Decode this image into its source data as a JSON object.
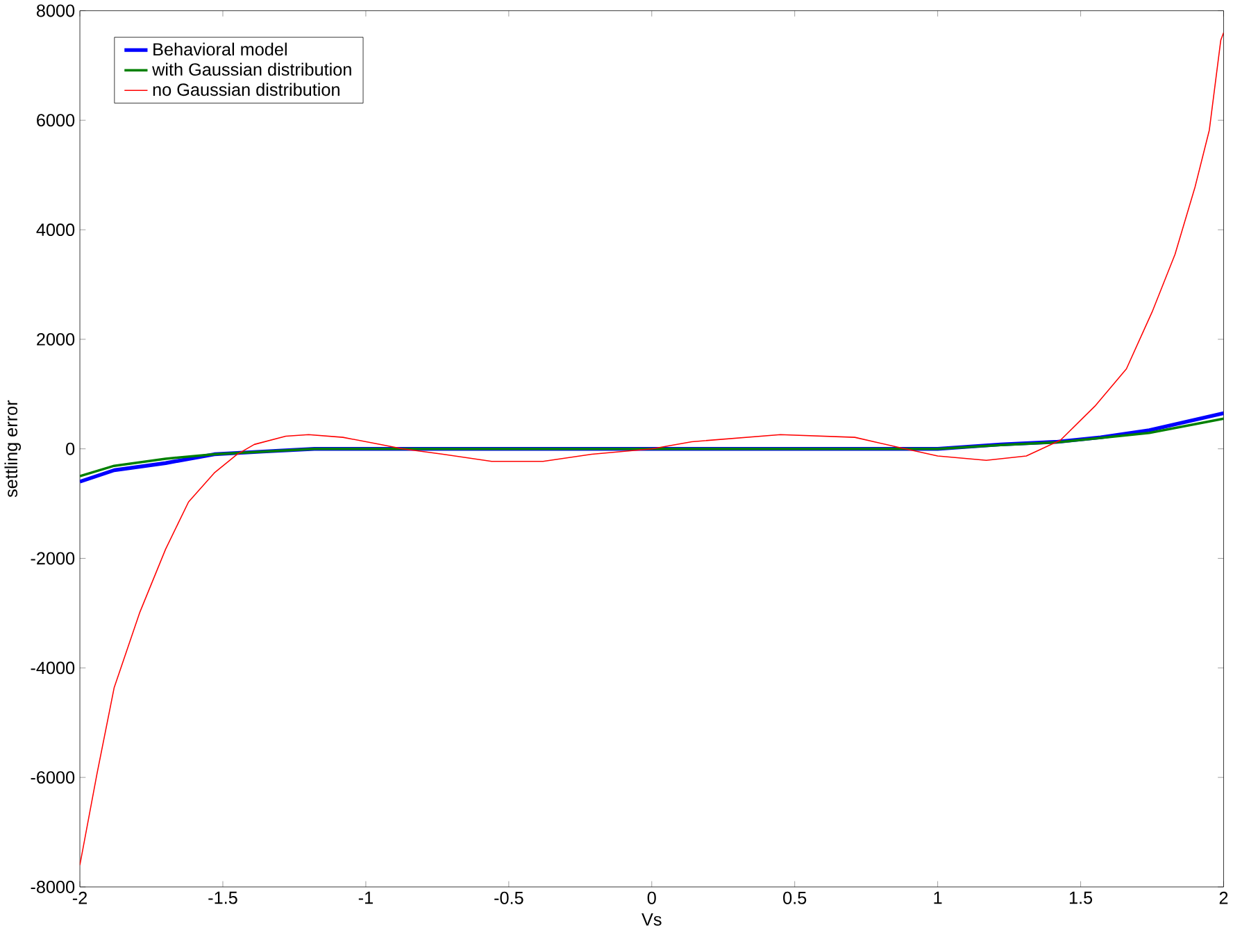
{
  "chart_data": {
    "type": "line",
    "xlabel": "Vs",
    "ylabel": "settling error",
    "xlim": [
      -2,
      2
    ],
    "ylim": [
      -8000,
      8000
    ],
    "xticks": [
      -2,
      -1.5,
      -1,
      -0.5,
      0,
      0.5,
      1,
      1.5,
      2
    ],
    "yticks": [
      -8000,
      -6000,
      -4000,
      -2000,
      0,
      2000,
      4000,
      6000,
      8000
    ],
    "grid": false,
    "legend": "top left",
    "marker": "none",
    "line_style": "solid",
    "series": [
      {
        "name": "Behavioral model",
        "color": "#0000ff",
        "x": [
          -2,
          -1.88,
          -1.7,
          -1.53,
          -1.36,
          -1.18,
          -1,
          0,
          1,
          1.22,
          1.42,
          1.57,
          1.74,
          2
        ],
        "values": [
          -600,
          -390,
          -260,
          -100,
          -50,
          0,
          0,
          0,
          0,
          80,
          130,
          210,
          340,
          650
        ]
      },
      {
        "name": "with Gaussian distribution",
        "color": "#008000",
        "x": [
          -2,
          -1.88,
          -1.7,
          -1.53,
          -1.36,
          -1.18,
          -1,
          0,
          1,
          1.22,
          1.42,
          1.57,
          1.74,
          2
        ],
        "values": [
          -500,
          -310,
          -180,
          -100,
          -50,
          0,
          0,
          0,
          0,
          70,
          120,
          200,
          290,
          550
        ]
      },
      {
        "name": "no Gaussian distribution",
        "color": "#ff0000",
        "x": [
          -2,
          -1.94,
          -1.88,
          -1.79,
          -1.7,
          -1.62,
          -1.53,
          -1.45,
          -1.39,
          -1.28,
          -1.2,
          -1.08,
          -0.97,
          -0.87,
          -0.73,
          -0.56,
          -0.38,
          -0.21,
          0,
          0.14,
          0.45,
          0.71,
          0.86,
          1.0,
          1.17,
          1.31,
          1.43,
          1.55,
          1.66,
          1.75,
          1.83,
          1.9,
          1.95,
          1.99,
          2
        ],
        "values": [
          -7600,
          -5930,
          -4360,
          -2980,
          -1830,
          -970,
          -440,
          -100,
          80,
          230,
          260,
          210,
          100,
          0,
          -100,
          -230,
          -230,
          -100,
          0,
          130,
          260,
          210,
          30,
          -130,
          -210,
          -130,
          160,
          780,
          1460,
          2500,
          3550,
          4780,
          5820,
          7460,
          7600
        ]
      }
    ]
  }
}
